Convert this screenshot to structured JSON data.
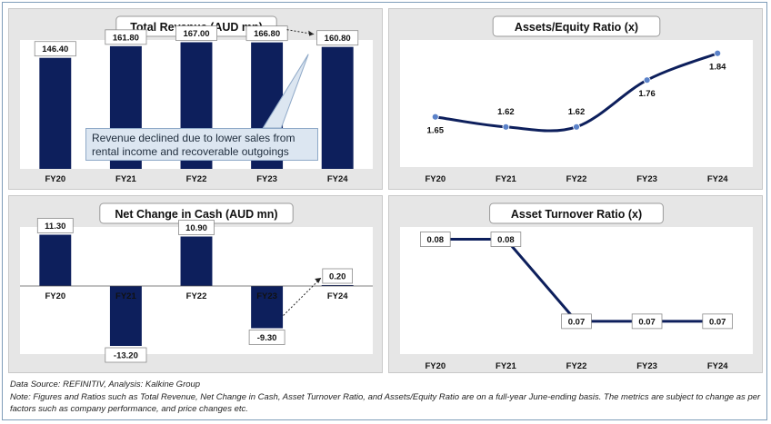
{
  "charts": {
    "revenue": {
      "type": "bar",
      "title": "Total Revenue (AUD mn)",
      "categories": [
        "FY20",
        "FY21",
        "FY22",
        "FY23",
        "FY24"
      ],
      "values": [
        146.4,
        161.8,
        167.0,
        166.8,
        160.8
      ],
      "labels": [
        "146.40",
        "161.80",
        "167.00",
        "166.80",
        "160.80"
      ],
      "callout": "Revenue declined due to lower sales from rental income and recoverable outgoings"
    },
    "assets_equity": {
      "type": "line",
      "title": "Assets/Equity Ratio (x)",
      "categories": [
        "FY20",
        "FY21",
        "FY22",
        "FY23",
        "FY24"
      ],
      "values": [
        1.65,
        1.62,
        1.62,
        1.76,
        1.84
      ],
      "labels": [
        "1.65",
        "1.62",
        "1.62",
        "1.76",
        "1.84"
      ]
    },
    "net_cash": {
      "type": "bar",
      "title": "Net Change in Cash (AUD mn)",
      "categories": [
        "FY20",
        "FY21",
        "FY22",
        "FY23",
        "FY24"
      ],
      "values": [
        11.3,
        -13.2,
        10.9,
        -9.3,
        0.2
      ],
      "labels": [
        "11.30",
        "-13.20",
        "10.90",
        "-9.30",
        "0.20"
      ]
    },
    "asset_turnover": {
      "type": "line",
      "title": "Asset Turnover Ratio (x)",
      "categories": [
        "FY20",
        "FY21",
        "FY22",
        "FY23",
        "FY24"
      ],
      "values": [
        0.08,
        0.08,
        0.07,
        0.07,
        0.07
      ],
      "labels": [
        "0.08",
        "0.08",
        "0.07",
        "0.07",
        "0.07"
      ]
    }
  },
  "chart_data": [
    {
      "type": "bar",
      "title": "Total Revenue (AUD mn)",
      "categories": [
        "FY20",
        "FY21",
        "FY22",
        "FY23",
        "FY24"
      ],
      "values": [
        146.4,
        161.8,
        167.0,
        166.8,
        160.8
      ]
    },
    {
      "type": "line",
      "title": "Assets/Equity Ratio (x)",
      "categories": [
        "FY20",
        "FY21",
        "FY22",
        "FY23",
        "FY24"
      ],
      "values": [
        1.65,
        1.62,
        1.62,
        1.76,
        1.84
      ]
    },
    {
      "type": "bar",
      "title": "Net Change in Cash (AUD mn)",
      "categories": [
        "FY20",
        "FY21",
        "FY22",
        "FY23",
        "FY24"
      ],
      "values": [
        11.3,
        -13.2,
        10.9,
        -9.3,
        0.2
      ]
    },
    {
      "type": "line",
      "title": "Asset Turnover Ratio (x)",
      "categories": [
        "FY20",
        "FY21",
        "FY22",
        "FY23",
        "FY24"
      ],
      "values": [
        0.08,
        0.08,
        0.07,
        0.07,
        0.07
      ]
    }
  ],
  "colors": {
    "bar": "#0d1f5c",
    "line": "#0d1f5c",
    "marker": "#5b82c9",
    "plot_bg": "#ffffff",
    "panel_bg": "#e6e6e6"
  },
  "footer": {
    "source": "Data Source: REFINITIV, Analysis: Kalkine Group",
    "note": "Note: Figures and Ratios such as Total Revenue, Net Change in Cash, Asset Turnover Ratio, and Assets/Equity Ratio are on a full-year June-ending basis. The metrics are subject to change as per factors such as company performance, and price changes etc."
  }
}
